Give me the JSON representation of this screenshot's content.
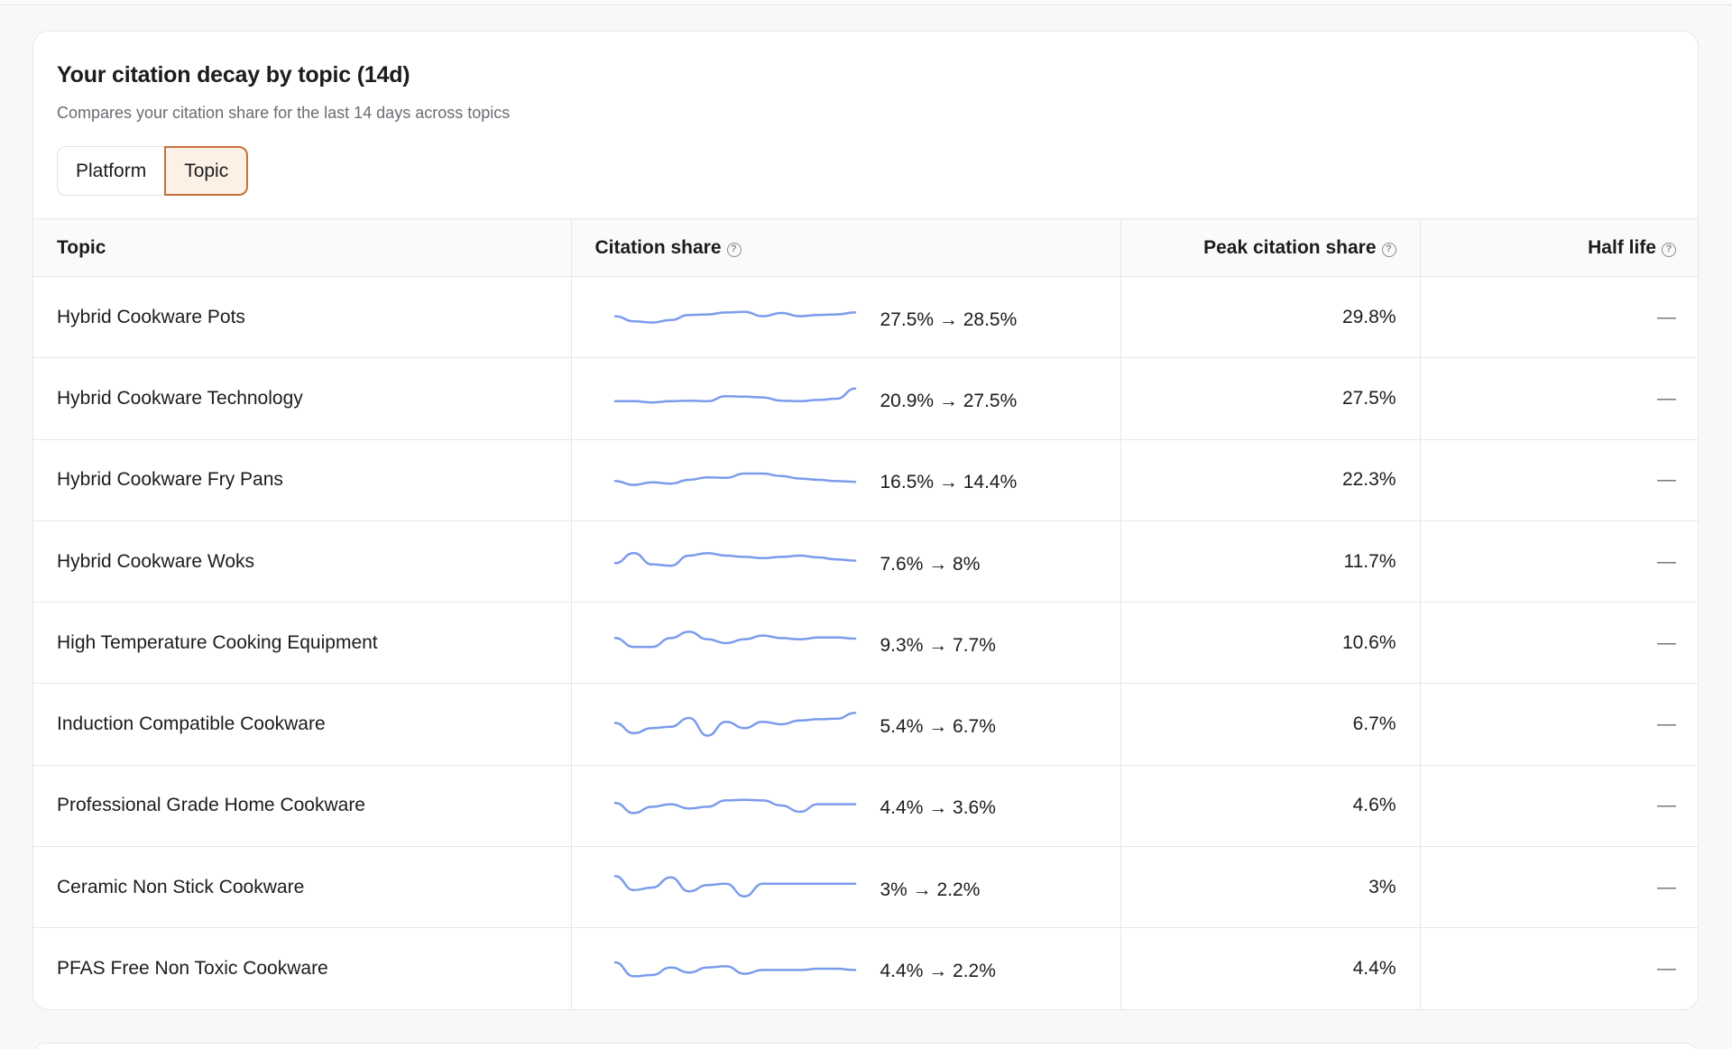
{
  "header": {
    "title": "Your citation decay by topic (14d)",
    "subtitle": "Compares your citation share for the last 14 days across topics"
  },
  "toggle": {
    "options": [
      "Platform",
      "Topic"
    ],
    "selected": "Topic"
  },
  "table": {
    "columns": {
      "topic": "Topic",
      "citation_share": "Citation share",
      "peak": "Peak citation share",
      "half_life": "Half life"
    },
    "rows": [
      {
        "topic": "Hybrid Cookware Pots",
        "share_change": "27.5% → 28.5%",
        "peak": "29.8%",
        "half_life": "—",
        "trend": [
          0.55,
          0.35,
          0.3,
          0.4,
          0.6,
          0.62,
          0.7,
          0.72,
          0.55,
          0.68,
          0.55,
          0.6,
          0.62,
          0.7
        ]
      },
      {
        "topic": "Hybrid Cookware Technology",
        "share_change": "20.9% → 27.5%",
        "peak": "27.5%",
        "half_life": "—",
        "trend": [
          0.4,
          0.4,
          0.35,
          0.4,
          0.42,
          0.4,
          0.6,
          0.58,
          0.55,
          0.42,
          0.4,
          0.45,
          0.5,
          0.9
        ]
      },
      {
        "topic": "Hybrid Cookware Fry Pans",
        "share_change": "16.5% → 14.4%",
        "peak": "22.3%",
        "half_life": "—",
        "trend": [
          0.45,
          0.3,
          0.4,
          0.35,
          0.5,
          0.6,
          0.58,
          0.75,
          0.75,
          0.65,
          0.55,
          0.5,
          0.45,
          0.42
        ]
      },
      {
        "topic": "Hybrid Cookware Woks",
        "share_change": "7.6% → 8%",
        "peak": "11.7%",
        "half_life": "—",
        "trend": [
          0.45,
          0.85,
          0.4,
          0.35,
          0.75,
          0.85,
          0.75,
          0.7,
          0.65,
          0.7,
          0.75,
          0.68,
          0.6,
          0.55
        ]
      },
      {
        "topic": "High Temperature Cooking Equipment",
        "share_change": "9.3% → 7.7%",
        "peak": "10.6%",
        "half_life": "—",
        "trend": [
          0.7,
          0.35,
          0.35,
          0.7,
          0.95,
          0.65,
          0.5,
          0.65,
          0.8,
          0.7,
          0.65,
          0.72,
          0.72,
          0.68
        ]
      },
      {
        "topic": "Induction Compatible Cookware",
        "share_change": "5.4% → 6.7%",
        "peak": "6.7%",
        "half_life": "—",
        "trend": [
          0.55,
          0.15,
          0.35,
          0.4,
          0.75,
          0.05,
          0.6,
          0.35,
          0.6,
          0.5,
          0.65,
          0.7,
          0.72,
          0.95
        ]
      },
      {
        "topic": "Professional Grade Home Cookware",
        "share_change": "4.4% → 3.6%",
        "peak": "4.6%",
        "half_life": "—",
        "trend": [
          0.6,
          0.2,
          0.45,
          0.55,
          0.38,
          0.45,
          0.7,
          0.72,
          0.7,
          0.5,
          0.25,
          0.55,
          0.55,
          0.55
        ]
      },
      {
        "topic": "Ceramic Non Stick Cookware",
        "share_change": "3% → 2.2%",
        "peak": "3%",
        "half_life": "—",
        "trend": [
          0.95,
          0.4,
          0.5,
          0.9,
          0.35,
          0.6,
          0.65,
          0.15,
          0.65,
          0.65,
          0.65,
          0.65,
          0.65,
          0.65
        ]
      },
      {
        "topic": "PFAS Free Non Toxic Cookware",
        "share_change": "4.4% → 2.2%",
        "peak": "4.4%",
        "half_life": "—",
        "trend": [
          0.75,
          0.2,
          0.25,
          0.55,
          0.35,
          0.55,
          0.6,
          0.3,
          0.45,
          0.45,
          0.45,
          0.5,
          0.5,
          0.45
        ]
      }
    ]
  },
  "colors": {
    "accent": "#c9703a",
    "accent_bg": "#fdf0e4",
    "sparkline": "#7b9cec"
  }
}
